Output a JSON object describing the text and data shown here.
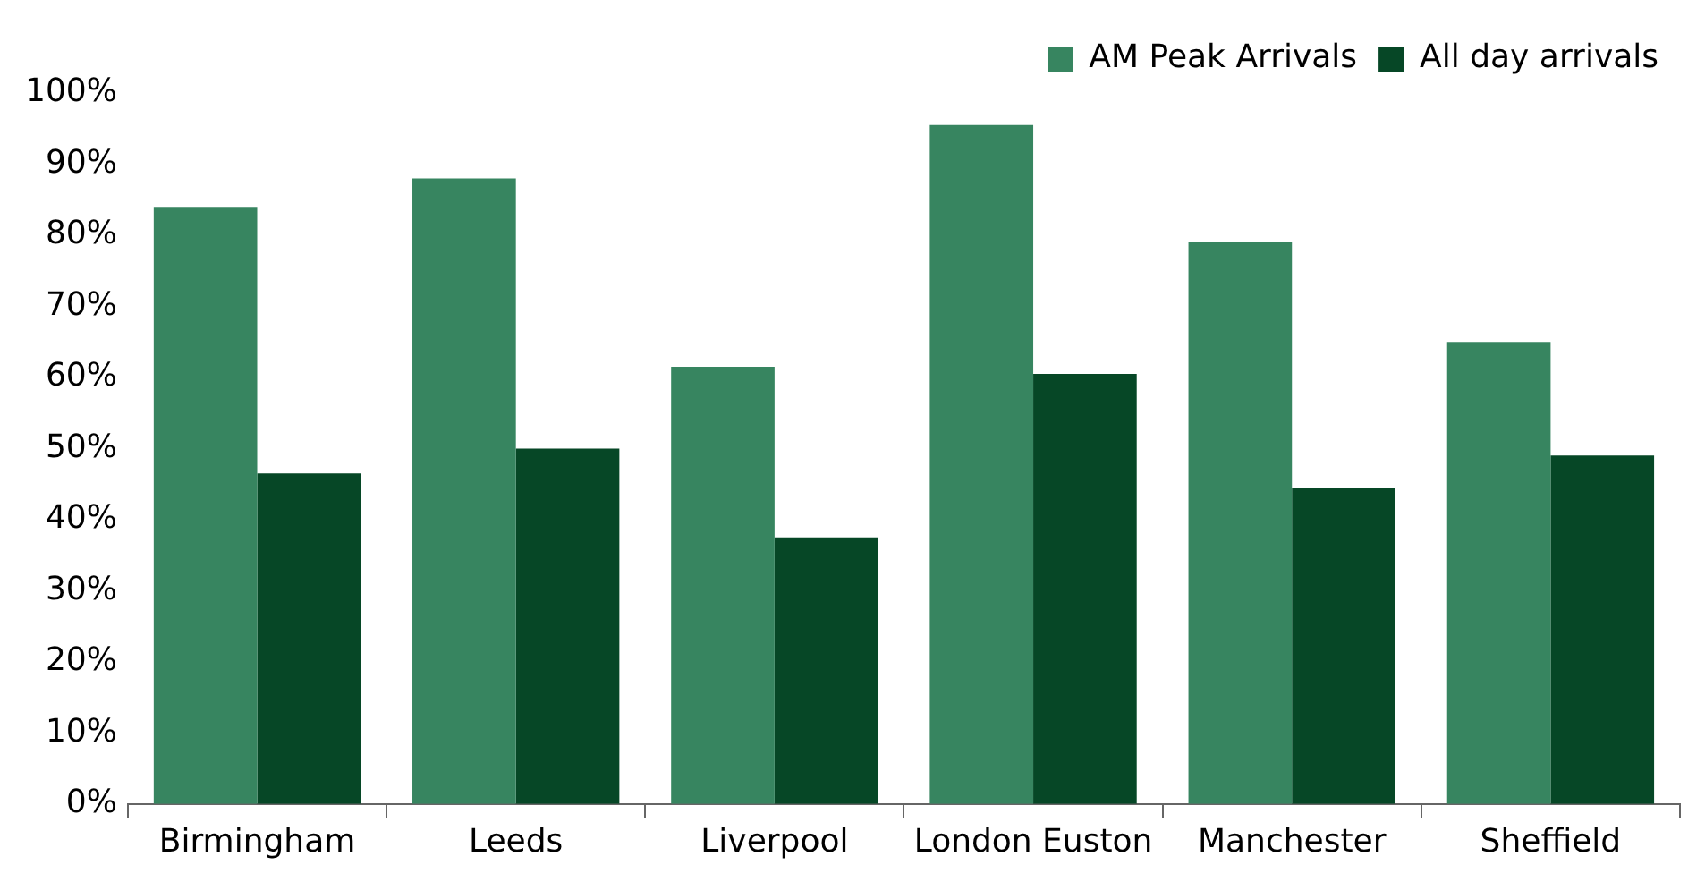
{
  "chart_data": {
    "type": "bar",
    "categories": [
      "Birmingham",
      "Leeds",
      "Liverpool",
      "London Euston",
      "Manchester",
      "Sheffield"
    ],
    "series": [
      {
        "name": "AM Peak Arrivals",
        "color": "#378560",
        "values": [
          84,
          88,
          61.5,
          95.5,
          79,
          65
        ]
      },
      {
        "name": "All day arrivals",
        "color": "#064726",
        "values": [
          46.5,
          50,
          37.5,
          60.5,
          44.5,
          49
        ]
      }
    ],
    "ylim": [
      0,
      100
    ],
    "yticks": [
      {
        "value": 0,
        "label": "0%"
      },
      {
        "value": 10,
        "label": "10%"
      },
      {
        "value": 20,
        "label": "20%"
      },
      {
        "value": 30,
        "label": "30%"
      },
      {
        "value": 40,
        "label": "40%"
      },
      {
        "value": 50,
        "label": "50%"
      },
      {
        "value": 60,
        "label": "60%"
      },
      {
        "value": 70,
        "label": "70%"
      },
      {
        "value": 80,
        "label": "80%"
      },
      {
        "value": 90,
        "label": "90%"
      },
      {
        "value": 100,
        "label": "100%"
      }
    ],
    "grid": false,
    "legend": "top right"
  }
}
